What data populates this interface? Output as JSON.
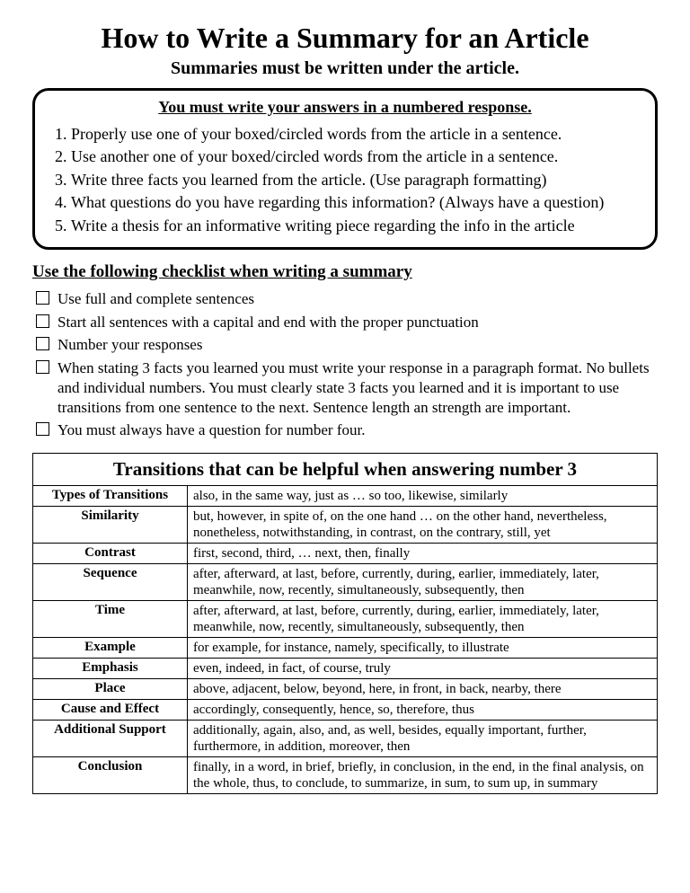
{
  "title": "How to Write a Summary for an Article",
  "subtitle": "Summaries must be written under the article.",
  "boxed_heading": "You must write your answers in a numbered response.",
  "numbered_items": [
    "Properly use one of your boxed/circled words from the article in a sentence.",
    "Use another one of your boxed/circled words from the article in a sentence.",
    "Write three facts you learned from the article. (Use paragraph formatting)",
    "What questions do you have regarding this information? (Always have a question)",
    "Write a thesis for an informative writing piece regarding the info in the article"
  ],
  "checklist_heading": "Use the following checklist when writing a summary",
  "checklist_items": [
    "Use full and complete sentences",
    "Start all sentences with a capital and end with the proper punctuation",
    "Number your responses",
    "When stating 3 facts you learned you must write your response in a paragraph format.  No bullets and individual numbers.  You must clearly state 3 facts you learned and it is important to use transitions from one sentence to the next.  Sentence length an strength are important.",
    "You must always have a question for number four."
  ],
  "table_title": "Transitions that can be helpful when answering number 3",
  "header_type": "Types of Transitions",
  "transitions": [
    {
      "type": "Similarity",
      "words": "also, in the same way, just as … so too, likewise, similarly"
    },
    {
      "type": "Contrast",
      "words": "but, however, in spite of, on the one hand … on the other hand, nevertheless, nonetheless, notwithstanding, in contrast, on the contrary, still, yet"
    },
    {
      "type": "Sequence",
      "words": "first, second, third, … next, then, finally"
    },
    {
      "type": "Time",
      "words": "after, afterward, at last, before, currently, during, earlier, immediately, later, meanwhile, now, recently, simultaneously, subsequently, then"
    },
    {
      "type": "Example",
      "words": "after, afterward, at last, before, currently, during, earlier, immediately, later, meanwhile, now, recently, simultaneously, subsequently, then"
    },
    {
      "type": "Emphasis",
      "words": "for example, for instance, namely, specifically, to illustrate"
    },
    {
      "type": "Place",
      "words": "even, indeed, in fact, of course, truly"
    },
    {
      "type": "Cause and Effect",
      "words": "above, adjacent, below, beyond, here, in front, in back, nearby, there"
    },
    {
      "type": "Additional Support",
      "words": "accordingly, consequently, hence, so, therefore, thus"
    },
    {
      "type": "Conclusion",
      "words": "additionally, again, also, and, as well, besides, equally important, further, furthermore, in addition, moreover, then"
    },
    {
      "type": "",
      "words": "finally, in a word, in brief, briefly, in conclusion, in the end, in the final analysis, on the whole, thus, to conclude, to summarize, in sum, to sum up, in summary"
    }
  ]
}
